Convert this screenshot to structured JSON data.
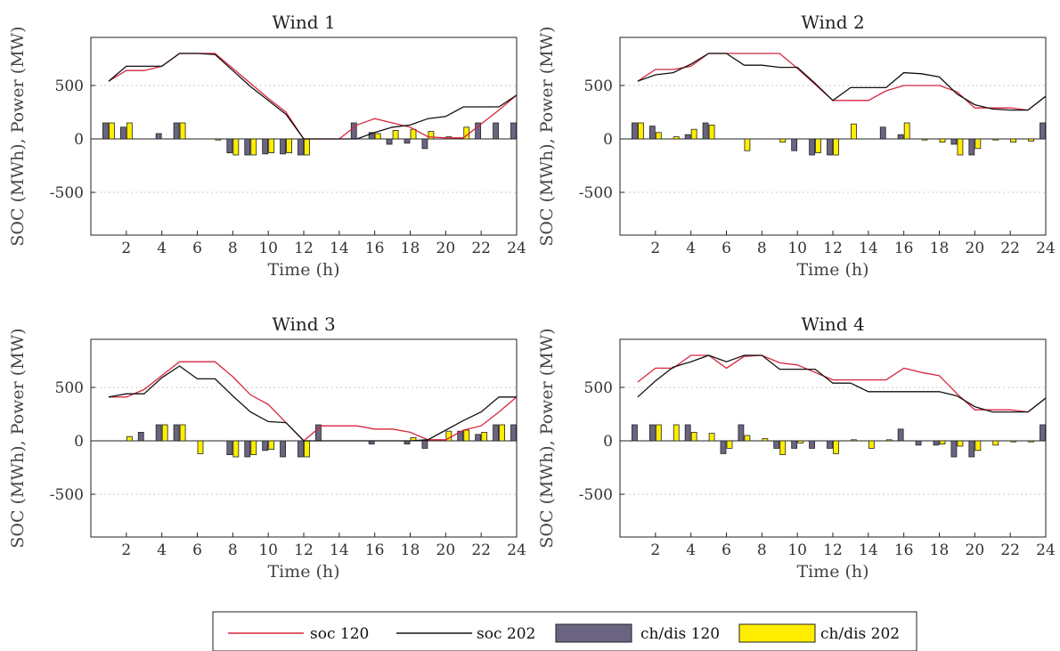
{
  "chart_data": [
    {
      "type": "bar+line",
      "title": "Wind 1",
      "xlabel": "Time (h)",
      "ylabel": "SOC (MWh), Power (MW)",
      "xticks": [
        2,
        4,
        6,
        8,
        10,
        12,
        14,
        16,
        18,
        20,
        22,
        24
      ],
      "yticks": [
        -500,
        0,
        500
      ],
      "xlim": [
        0,
        24
      ],
      "ylim": [
        -900,
        950
      ],
      "x": [
        1,
        2,
        3,
        4,
        5,
        6,
        7,
        8,
        9,
        10,
        11,
        12,
        13,
        14,
        15,
        16,
        17,
        18,
        19,
        20,
        21,
        22,
        23,
        24
      ],
      "series": [
        {
          "name": "soc 120",
          "kind": "line",
          "values": [
            540,
            640,
            640,
            680,
            800,
            800,
            800,
            660,
            520,
            380,
            250,
            0,
            0,
            0,
            130,
            190,
            150,
            110,
            20,
            10,
            10,
            140,
            270,
            410
          ]
        },
        {
          "name": "soc 202",
          "kind": "line",
          "values": [
            540,
            680,
            680,
            680,
            800,
            800,
            790,
            640,
            490,
            360,
            230,
            0,
            0,
            0,
            0,
            60,
            110,
            130,
            190,
            210,
            300,
            300,
            300,
            410
          ]
        },
        {
          "name": "ch/dis 120",
          "kind": "bar",
          "values": [
            150,
            110,
            0,
            50,
            150,
            0,
            0,
            -130,
            -150,
            -140,
            -140,
            -150,
            0,
            0,
            150,
            60,
            -50,
            -40,
            -90,
            0,
            0,
            150,
            150,
            150
          ]
        },
        {
          "name": "ch/dis 202",
          "kind": "bar",
          "values": [
            150,
            150,
            0,
            0,
            150,
            0,
            -10,
            -150,
            -150,
            -130,
            -130,
            -150,
            0,
            0,
            0,
            50,
            80,
            90,
            70,
            20,
            110,
            0,
            0,
            0
          ]
        }
      ]
    },
    {
      "type": "bar+line",
      "title": "Wind 2",
      "xlabel": "Time (h)",
      "ylabel": "SOC (MWh), Power (MW)",
      "xticks": [
        2,
        4,
        6,
        8,
        10,
        12,
        14,
        16,
        18,
        20,
        22,
        24
      ],
      "yticks": [
        -500,
        0,
        500
      ],
      "xlim": [
        0,
        24
      ],
      "ylim": [
        -900,
        950
      ],
      "x": [
        1,
        2,
        3,
        4,
        5,
        6,
        7,
        8,
        9,
        10,
        11,
        12,
        13,
        14,
        15,
        16,
        17,
        18,
        19,
        20,
        21,
        22,
        23,
        24
      ],
      "series": [
        {
          "name": "soc 120",
          "kind": "line",
          "values": [
            540,
            650,
            650,
            680,
            800,
            800,
            800,
            800,
            800,
            660,
            510,
            360,
            360,
            360,
            450,
            500,
            500,
            500,
            440,
            290,
            290,
            290,
            270,
            400
          ]
        },
        {
          "name": "soc 202",
          "kind": "line",
          "values": [
            540,
            600,
            620,
            700,
            800,
            800,
            690,
            690,
            670,
            670,
            520,
            360,
            480,
            480,
            480,
            620,
            610,
            580,
            420,
            320,
            280,
            270,
            270,
            400
          ]
        },
        {
          "name": "ch/dis 120",
          "kind": "bar",
          "values": [
            150,
            120,
            0,
            40,
            150,
            0,
            0,
            0,
            0,
            -110,
            -150,
            -150,
            0,
            0,
            110,
            40,
            0,
            0,
            -50,
            -150,
            0,
            0,
            0,
            150
          ]
        },
        {
          "name": "ch/dis 202",
          "kind": "bar",
          "values": [
            150,
            60,
            20,
            90,
            130,
            0,
            -110,
            0,
            -30,
            0,
            -130,
            -150,
            140,
            0,
            0,
            150,
            -10,
            -30,
            -150,
            -90,
            -10,
            -30,
            -20,
            0
          ]
        }
      ]
    },
    {
      "type": "bar+line",
      "title": "Wind 3",
      "xlabel": "Time (h)",
      "ylabel": "SOC (MWh), Power (MW)",
      "xticks": [
        2,
        4,
        6,
        8,
        10,
        12,
        14,
        16,
        18,
        20,
        22,
        24
      ],
      "yticks": [
        -500,
        0,
        500
      ],
      "xlim": [
        0,
        24
      ],
      "ylim": [
        -900,
        950
      ],
      "x": [
        1,
        2,
        3,
        4,
        5,
        6,
        7,
        8,
        9,
        10,
        11,
        12,
        13,
        14,
        15,
        16,
        17,
        18,
        19,
        20,
        21,
        22,
        23,
        24
      ],
      "series": [
        {
          "name": "soc 120",
          "kind": "line",
          "values": [
            410,
            410,
            480,
            610,
            740,
            740,
            740,
            600,
            430,
            340,
            170,
            0,
            140,
            140,
            140,
            110,
            110,
            80,
            10,
            10,
            100,
            140,
            270,
            410
          ]
        },
        {
          "name": "soc 202",
          "kind": "line",
          "values": [
            410,
            440,
            440,
            590,
            700,
            580,
            580,
            420,
            270,
            180,
            170,
            0,
            0,
            0,
            0,
            0,
            0,
            0,
            10,
            100,
            190,
            270,
            410,
            410
          ]
        },
        {
          "name": "ch/dis 120",
          "kind": "bar",
          "values": [
            0,
            0,
            80,
            150,
            150,
            0,
            0,
            -130,
            -150,
            -90,
            -150,
            -150,
            150,
            0,
            0,
            -30,
            0,
            -30,
            -70,
            0,
            90,
            60,
            150,
            150
          ]
        },
        {
          "name": "ch/dis 202",
          "kind": "bar",
          "values": [
            0,
            40,
            0,
            150,
            150,
            -120,
            0,
            -150,
            -130,
            -80,
            0,
            -150,
            0,
            0,
            0,
            0,
            0,
            30,
            0,
            90,
            100,
            80,
            150,
            0
          ]
        }
      ]
    },
    {
      "type": "bar+line",
      "title": "Wind 4",
      "xlabel": "Time (h)",
      "ylabel": "SOC (MWh), Power (MW)",
      "xticks": [
        2,
        4,
        6,
        8,
        10,
        12,
        14,
        16,
        18,
        20,
        22,
        24
      ],
      "yticks": [
        -500,
        0,
        500
      ],
      "xlim": [
        0,
        24
      ],
      "ylim": [
        -900,
        950
      ],
      "x": [
        1,
        2,
        3,
        4,
        5,
        6,
        7,
        8,
        9,
        10,
        11,
        12,
        13,
        14,
        15,
        16,
        17,
        18,
        19,
        20,
        21,
        22,
        23,
        24
      ],
      "series": [
        {
          "name": "soc 120",
          "kind": "line",
          "values": [
            550,
            680,
            680,
            800,
            800,
            680,
            790,
            800,
            730,
            710,
            640,
            570,
            570,
            570,
            570,
            680,
            640,
            610,
            440,
            290,
            290,
            290,
            270,
            400
          ]
        },
        {
          "name": "soc 202",
          "kind": "line",
          "values": [
            410,
            560,
            690,
            740,
            800,
            740,
            800,
            800,
            670,
            670,
            670,
            540,
            540,
            460,
            460,
            460,
            460,
            460,
            420,
            320,
            270,
            270,
            270,
            400
          ]
        },
        {
          "name": "ch/dis 120",
          "kind": "bar",
          "values": [
            150,
            150,
            0,
            150,
            0,
            -120,
            150,
            0,
            -70,
            -70,
            -70,
            -70,
            0,
            0,
            0,
            110,
            -40,
            -40,
            -150,
            -150,
            0,
            0,
            0,
            150
          ]
        },
        {
          "name": "ch/dis 202",
          "kind": "bar",
          "values": [
            0,
            150,
            150,
            80,
            70,
            -70,
            50,
            20,
            -130,
            -20,
            0,
            -120,
            10,
            -70,
            10,
            0,
            0,
            -30,
            -50,
            -90,
            -40,
            -10,
            -10,
            0
          ]
        }
      ]
    }
  ],
  "legend": {
    "placement": "bottom-center",
    "entries": [
      {
        "label": "soc 120",
        "kind": "line",
        "color": "#d7263d"
      },
      {
        "label": "soc 202",
        "kind": "line",
        "color": "#111111"
      },
      {
        "label": "ch/dis 120",
        "kind": "bar",
        "color": "#6b6480"
      },
      {
        "label": "ch/dis 202",
        "kind": "bar",
        "color": "#ffee00"
      }
    ]
  },
  "colors": {
    "soc_120": "#d7263d",
    "soc_202": "#111111",
    "chdis_120": "#6b6480",
    "chdis_202": "#ffee00",
    "axis": "#222222"
  }
}
